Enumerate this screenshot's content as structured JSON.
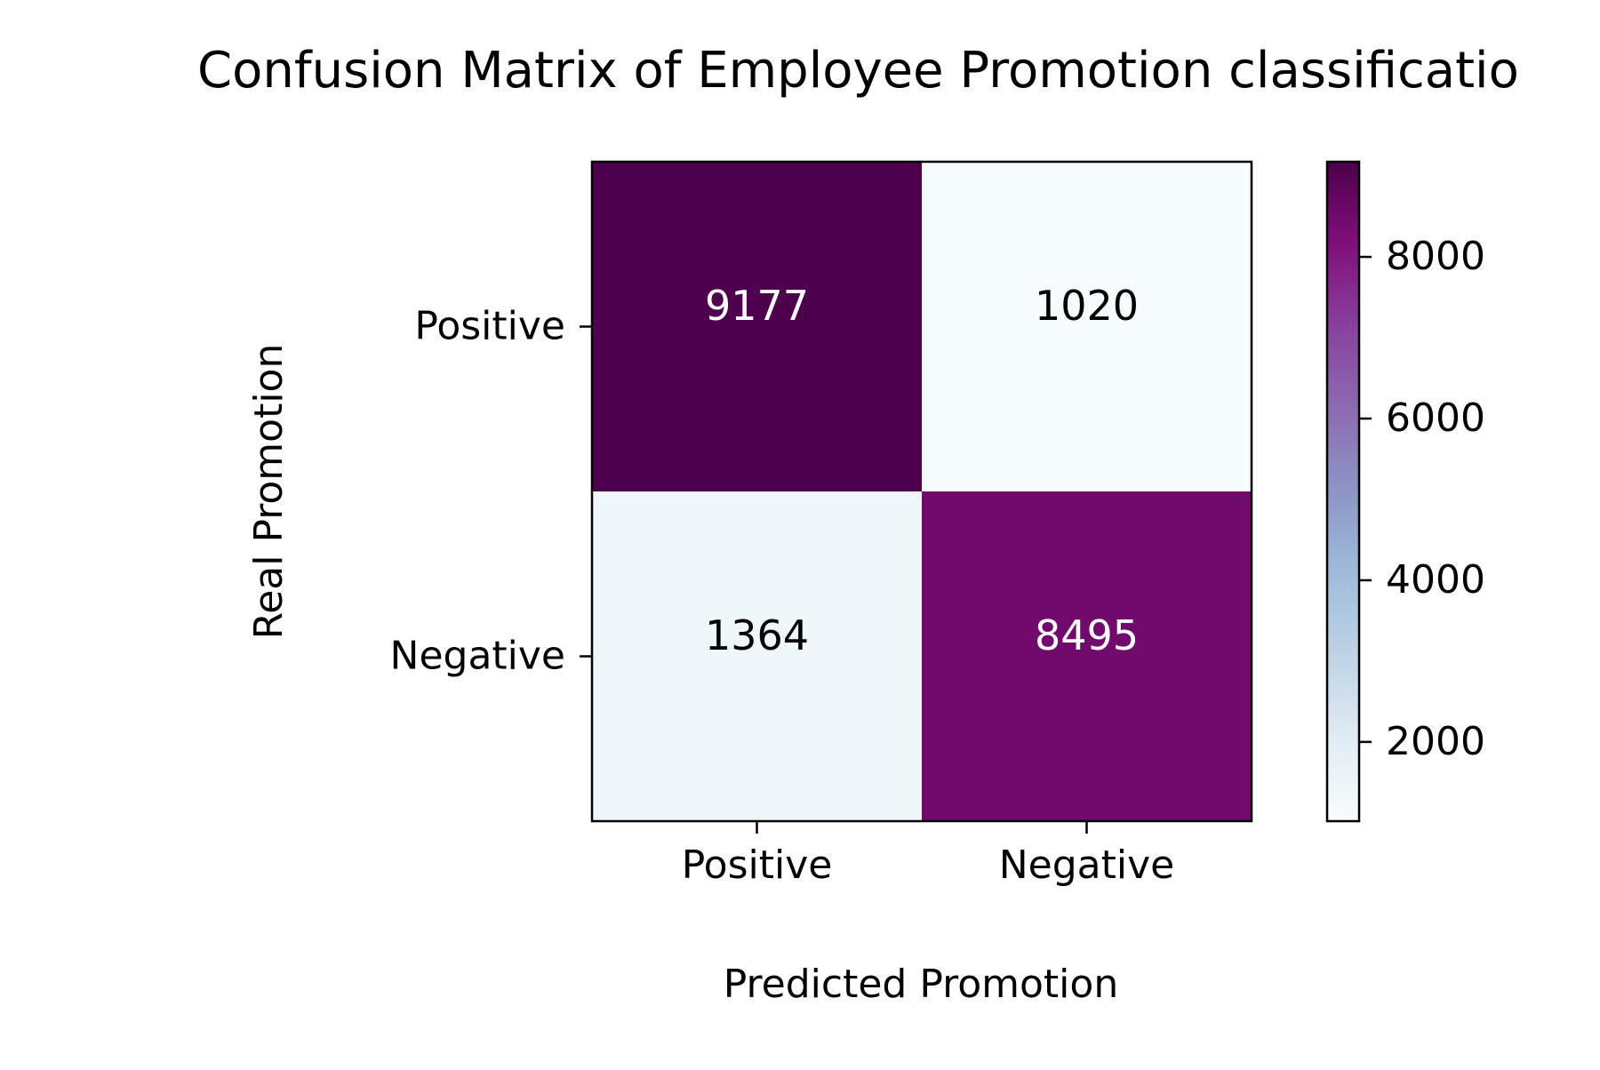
{
  "chart_data": {
    "type": "heatmap",
    "title": "Confusion Matrix of Employee Promotion classificatio",
    "xlabel": "Predicted Promotion",
    "ylabel": "Real Promotion",
    "x_categories": [
      "Positive",
      "Negative"
    ],
    "y_categories": [
      "Positive",
      "Negative"
    ],
    "values": [
      [
        9177,
        1020
      ],
      [
        1364,
        8495
      ]
    ],
    "colormap": "BuPu",
    "color_range": [
      1020,
      9177
    ],
    "colorbar_ticks": [
      2000,
      4000,
      6000,
      8000
    ],
    "colorbar_tick_labels": [
      "2000",
      "4000",
      "6000",
      "8000"
    ],
    "grid": false,
    "colorbar_position": "right"
  }
}
